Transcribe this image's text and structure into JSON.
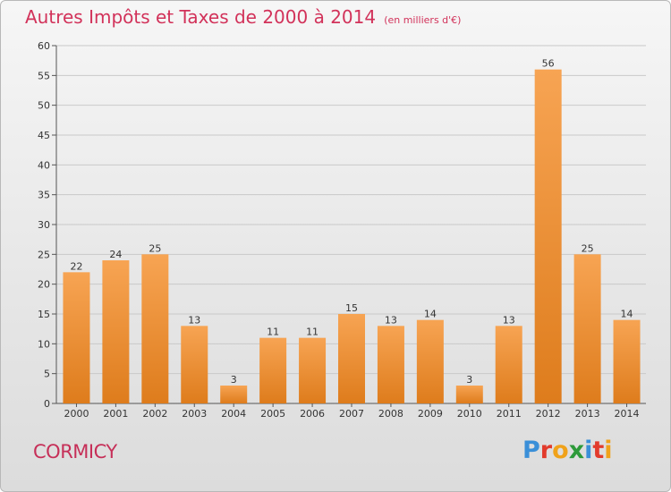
{
  "chart_data": {
    "type": "bar",
    "title": "Autres Impôts et Taxes de 2000 à 2014",
    "subtitle": "(en milliers d'€)",
    "categories": [
      "2000",
      "2001",
      "2002",
      "2003",
      "2004",
      "2005",
      "2006",
      "2007",
      "2008",
      "2009",
      "2010",
      "2011",
      "2012",
      "2013",
      "2014"
    ],
    "values": [
      22,
      24,
      25,
      13,
      3,
      11,
      11,
      15,
      13,
      14,
      3,
      13,
      56,
      25,
      14
    ],
    "ylim": [
      0,
      60
    ],
    "yticks": [
      0,
      5,
      10,
      15,
      20,
      25,
      30,
      35,
      40,
      45,
      50,
      55,
      60
    ],
    "grid": true,
    "bar_color_top": "#f7a453",
    "bar_color_bottom": "#de7c1c"
  },
  "footer": {
    "town": "CORMICY",
    "logo": [
      "P",
      "r",
      "o",
      "x",
      "i",
      "t",
      "i"
    ]
  }
}
